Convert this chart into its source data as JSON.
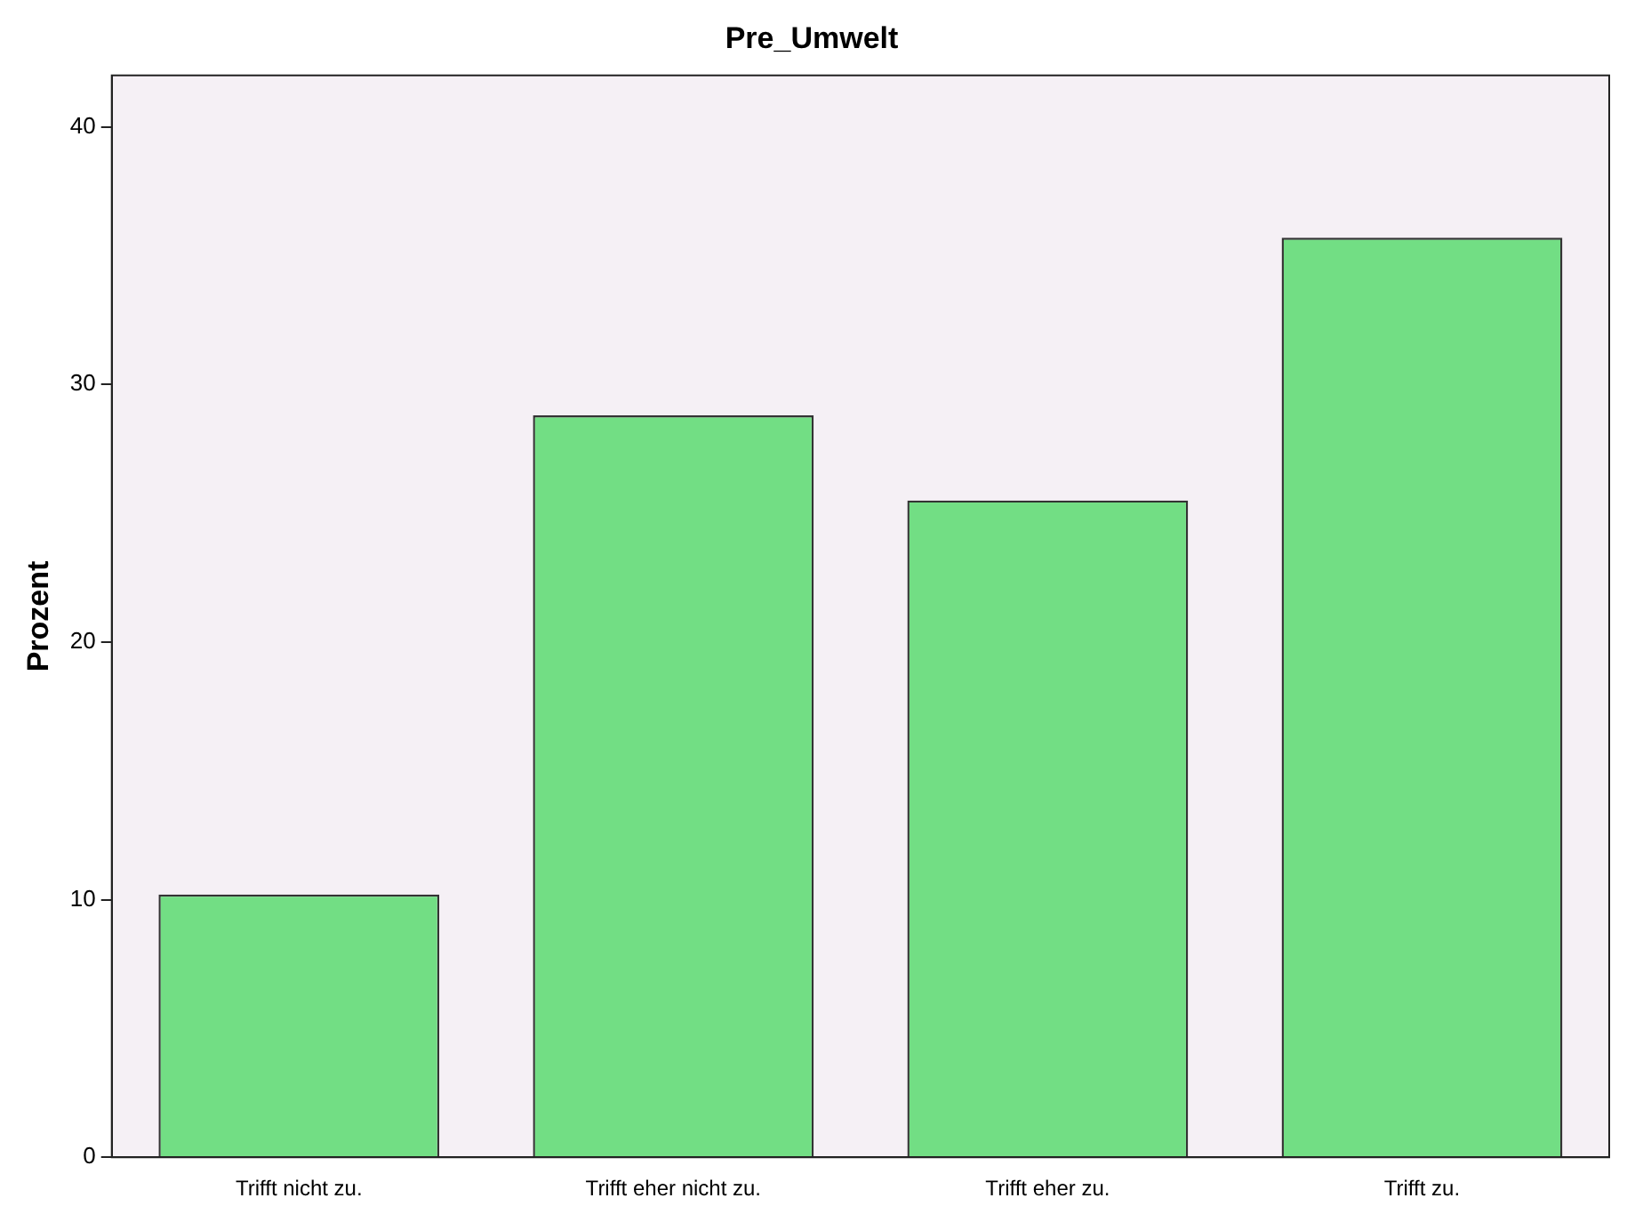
{
  "chart_data": {
    "type": "bar",
    "title": "Pre_Umwelt",
    "ylabel": "Prozent",
    "categories": [
      "Trifft nicht zu.",
      "Trifft eher nicht zu.",
      "Trifft eher zu.",
      "Trifft zu."
    ],
    "values": [
      10.2,
      28.8,
      25.5,
      35.7
    ],
    "color": "#72de84",
    "ylim": [
      0,
      42
    ],
    "yticks": [
      0,
      10,
      20,
      30,
      40
    ],
    "grid": false,
    "legend": false
  }
}
